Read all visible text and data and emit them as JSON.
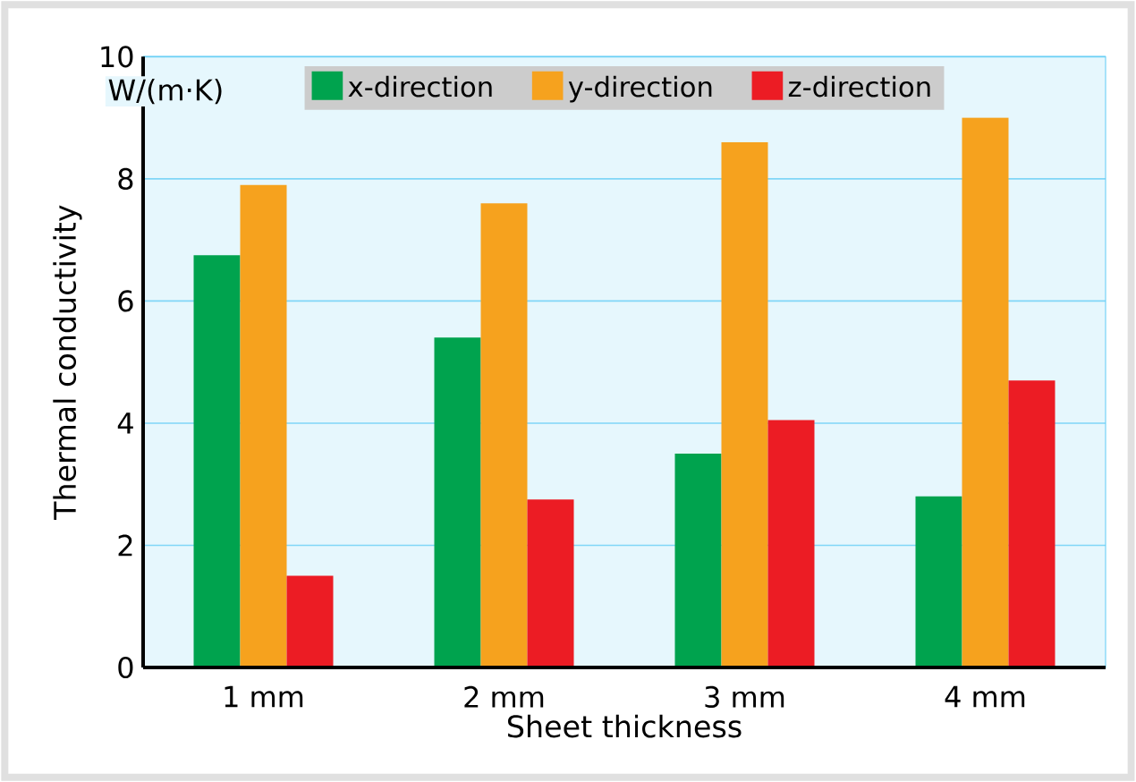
{
  "chart_data": {
    "type": "bar",
    "xlabel": "Sheet thickness",
    "ylabel": "Thermal conductivity",
    "annotations": [
      "W/(m·K)"
    ],
    "categories": [
      "1 mm",
      "2 mm",
      "3 mm",
      "4 mm"
    ],
    "series": [
      {
        "name": "x-direction",
        "color": "#00a34e",
        "values": [
          6.75,
          5.4,
          3.5,
          2.8
        ]
      },
      {
        "name": "y-direction",
        "color": "#f6a21e",
        "values": [
          7.9,
          7.6,
          8.6,
          9.0
        ]
      },
      {
        "name": "z-direction",
        "color": "#ec1c24",
        "values": [
          1.5,
          2.75,
          4.05,
          4.7
        ]
      }
    ],
    "ylim": [
      0,
      10
    ],
    "yticks": [
      0,
      2,
      4,
      6,
      8,
      10
    ],
    "grid": "y",
    "legend": "top"
  }
}
